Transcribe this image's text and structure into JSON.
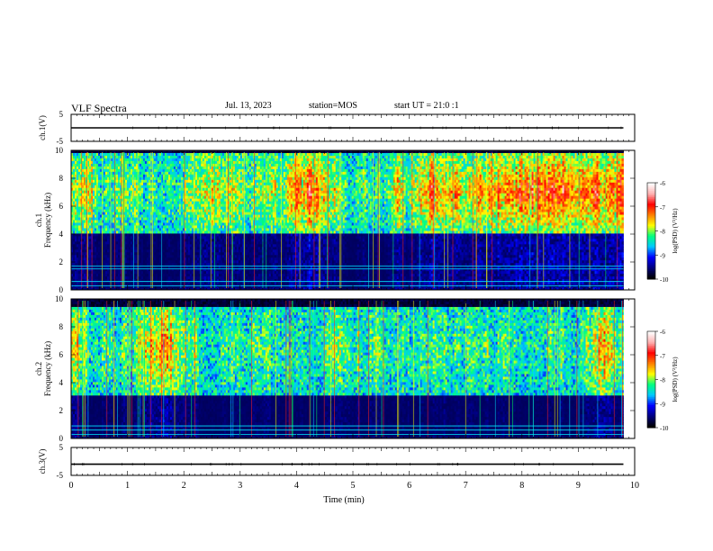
{
  "header": {
    "title": "VLF Spectra",
    "date": "Jul. 13, 2023",
    "station": "station=MOS",
    "start": "start UT = 21:0 :1"
  },
  "colorbar": {
    "label": "log(PSD) (V²/Hz)",
    "ticks": [
      "-6",
      "-7",
      "-8",
      "-9",
      "-10"
    ],
    "range": [
      -10,
      -6
    ]
  },
  "colors": {
    "scale": [
      "#000000",
      "#00007f",
      "#0000ff",
      "#00c8ff",
      "#00ff80",
      "#ffff00",
      "#ff8000",
      "#ff0000",
      "#ffb0b0",
      "#ffffff"
    ]
  },
  "chart_data": [
    {
      "type": "line",
      "panel": "ch1-voltage",
      "ylabel": "ch.1(V)",
      "yticks": [
        "5",
        "-5"
      ],
      "ylim": [
        -5,
        5
      ],
      "xlim": [
        0,
        10
      ],
      "series": [
        {
          "x": [
            0,
            9.8
          ],
          "values": [
            0,
            0
          ]
        }
      ]
    },
    {
      "type": "heatmap",
      "panel": "ch1-spectrogram",
      "ylabel": "ch.1\nFrequency (kHz)",
      "yticks": [
        "0",
        "2",
        "4",
        "6",
        "8",
        "10"
      ],
      "ylim": [
        0,
        10
      ],
      "xlim": [
        0,
        10
      ],
      "band_kHz": [
        4,
        9.8
      ],
      "band_peak_kHz": 7,
      "line_freqs_kHz": [
        0.3,
        0.6,
        1.5,
        1.7
      ]
    },
    {
      "type": "heatmap",
      "panel": "ch2-spectrogram",
      "ylabel": "ch.2\nFrequency (kHz)",
      "yticks": [
        "0",
        "2",
        "4",
        "6",
        "8",
        "10"
      ],
      "ylim": [
        0,
        10
      ],
      "xlim": [
        0,
        10
      ],
      "band_kHz": [
        3,
        9.5
      ],
      "band_peak_kHz": 6.5,
      "line_freqs_kHz": [
        0.3,
        0.6,
        0.9
      ]
    },
    {
      "type": "line",
      "panel": "ch3-voltage",
      "ylabel": "ch.3(V)",
      "yticks": [
        "5",
        "-5"
      ],
      "ylim": [
        -5,
        5
      ],
      "xlim": [
        0,
        10
      ],
      "series": [
        {
          "x": [
            0,
            9.8
          ],
          "values": [
            -1,
            -1
          ]
        }
      ]
    }
  ],
  "xaxis": {
    "label": "Time (min)",
    "ticks": [
      "0",
      "1",
      "2",
      "3",
      "4",
      "5",
      "6",
      "7",
      "8",
      "9",
      "10"
    ],
    "range": [
      0,
      10
    ]
  }
}
